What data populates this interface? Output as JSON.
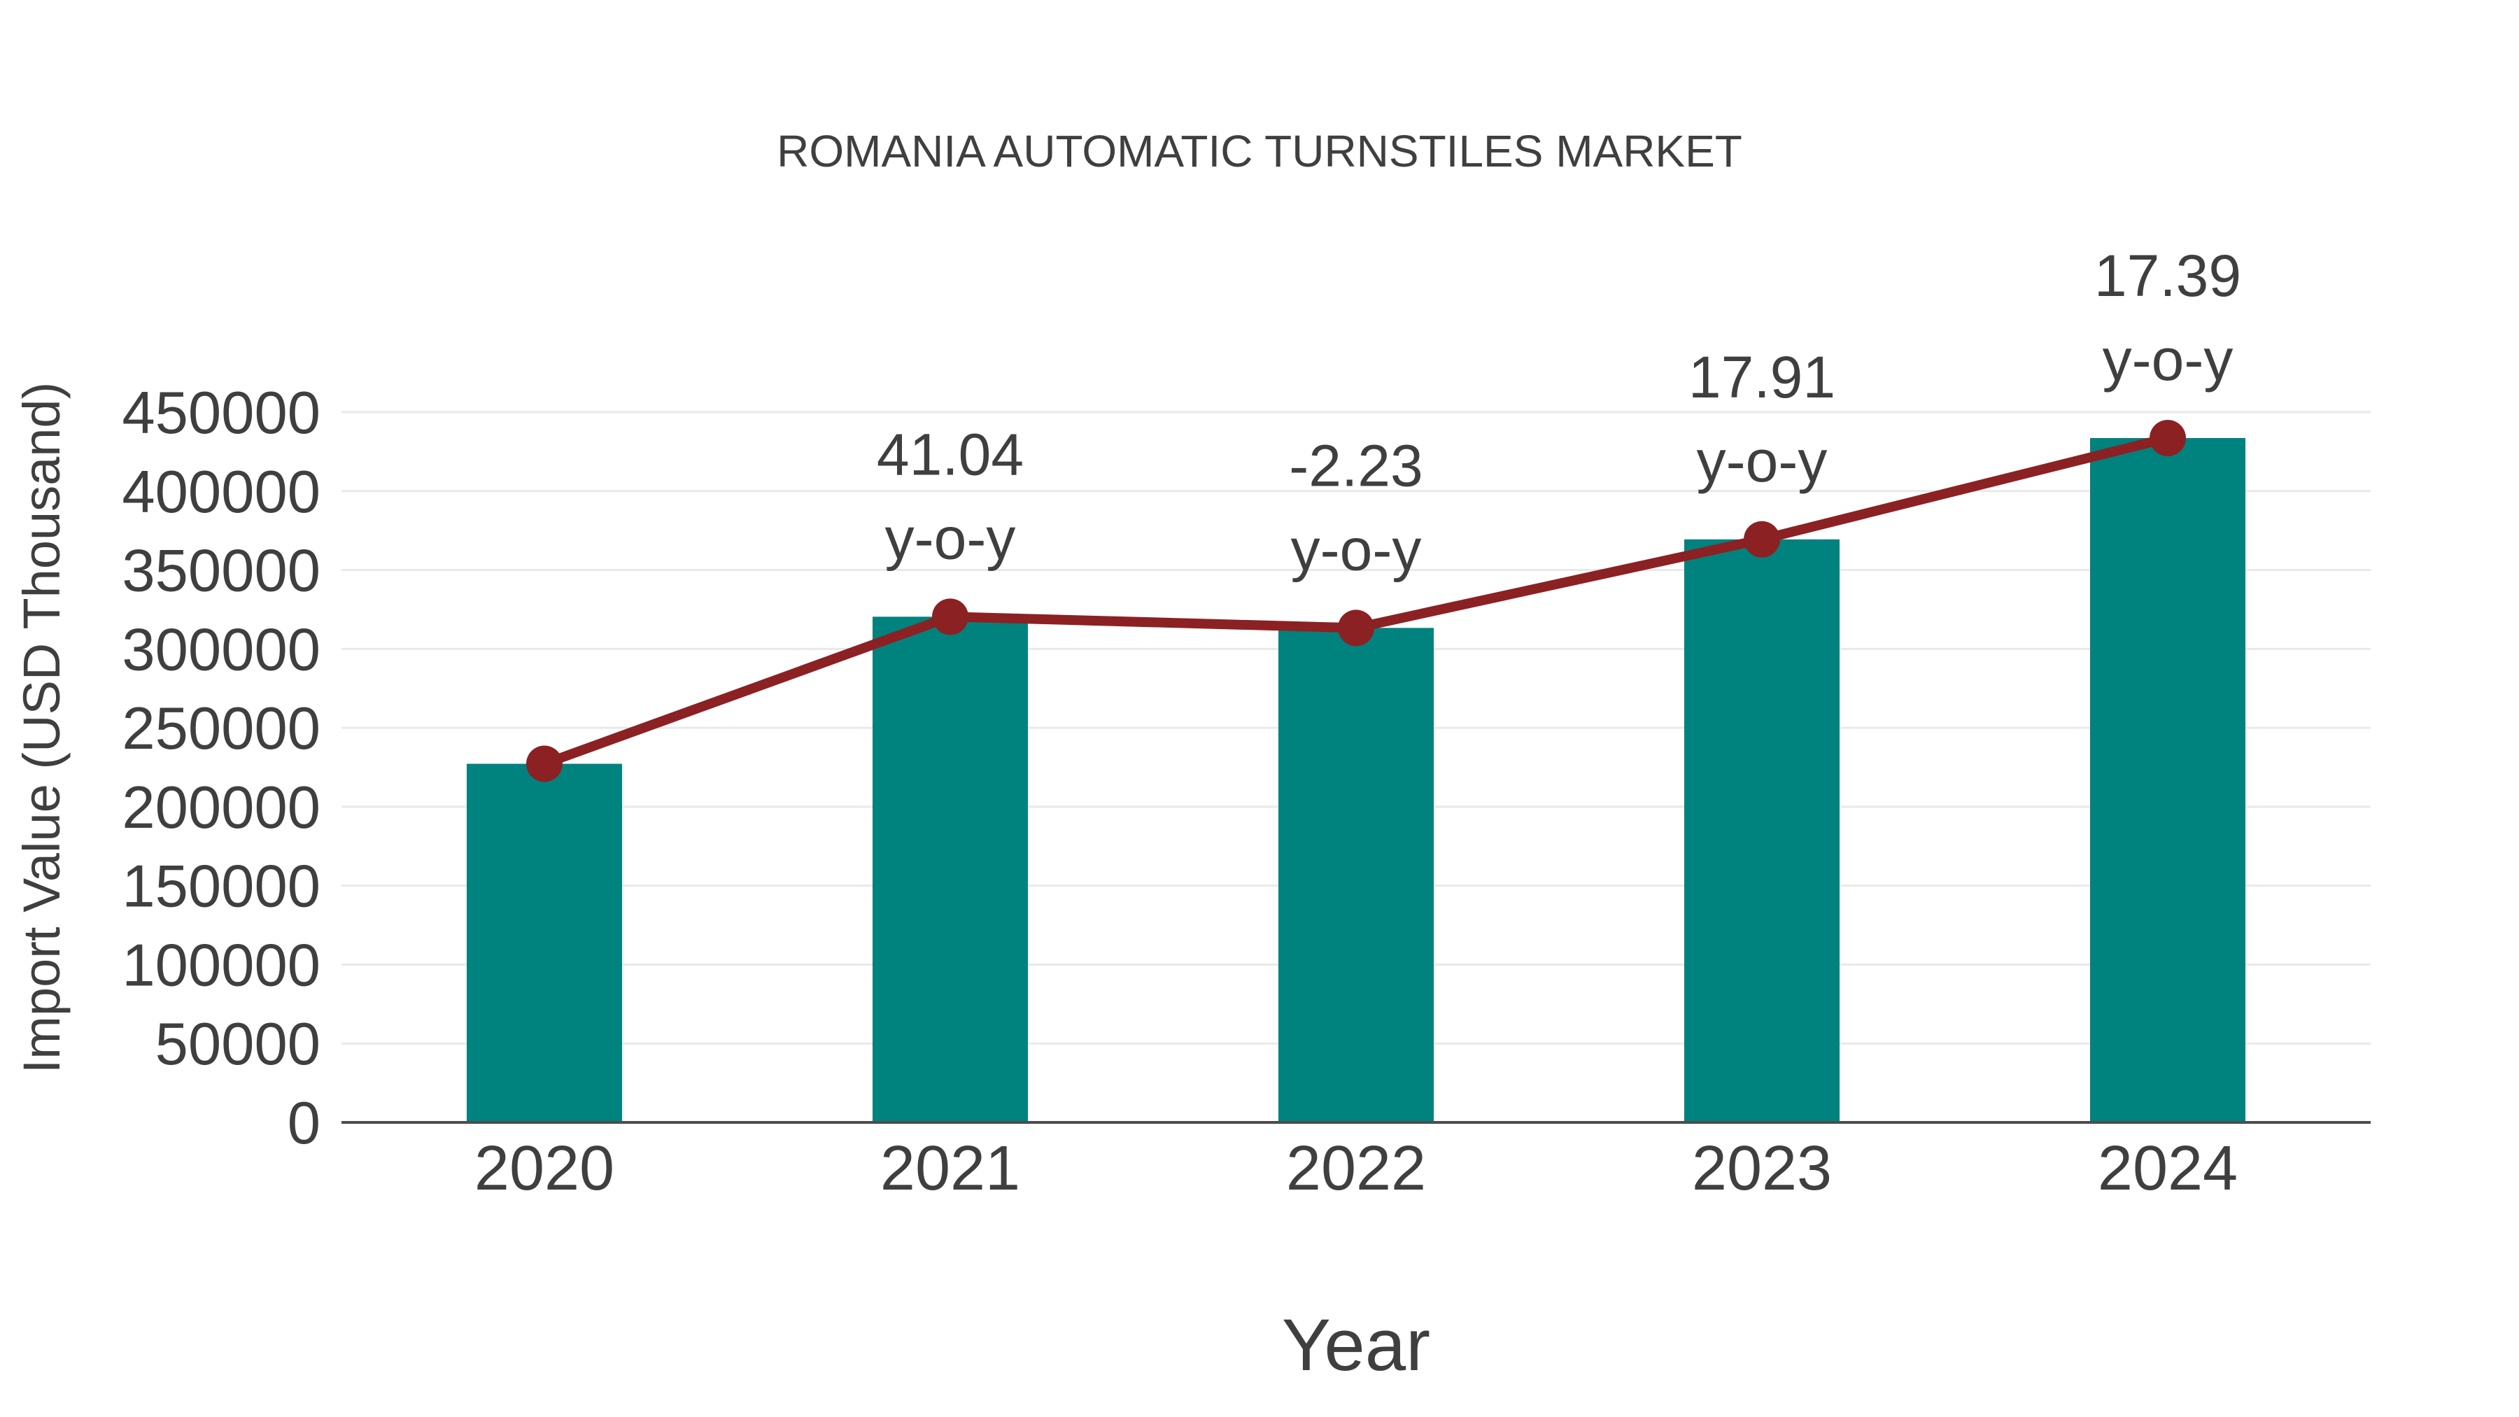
{
  "chart_data": {
    "type": "bar",
    "combo": "bar+line",
    "title": "ROMANIA AUTOMATIC TURNSTILES MARKET",
    "xlabel": "Year",
    "ylabel": "Import Value (USD Thousand)",
    "categories": [
      "2020",
      "2021",
      "2022",
      "2023",
      "2024"
    ],
    "series": [
      {
        "name": "Import Value (USD Thousand)",
        "type": "bar",
        "values": [
          227200,
          320400,
          313300,
          369400,
          433600
        ]
      },
      {
        "name": "y-o-y growth line",
        "type": "line",
        "note": "line with round markers passing through each bar top",
        "values": [
          227200,
          320400,
          313300,
          369400,
          433600
        ]
      }
    ],
    "annotations": [
      {
        "category": "2021",
        "value_label": "41.04",
        "suffix_label": "y-o-y"
      },
      {
        "category": "2022",
        "value_label": "-2.23",
        "suffix_label": "y-o-y"
      },
      {
        "category": "2023",
        "value_label": "17.91",
        "suffix_label": "y-o-y"
      },
      {
        "category": "2024",
        "value_label": "17.39",
        "suffix_label": "y-o-y"
      }
    ],
    "yticks": [
      0,
      50000,
      100000,
      150000,
      200000,
      250000,
      300000,
      350000,
      400000,
      450000
    ],
    "ylim": [
      0,
      450000
    ],
    "grid": "horizontal",
    "legend": "none",
    "colors": {
      "bar": "#00827E",
      "line": "#8B2123",
      "marker": "#8B2123",
      "text": "#3F3F3F",
      "gridline": "#E9E9E9",
      "axis_line": "#4D4D4D",
      "background": "#FFFFFF"
    }
  }
}
